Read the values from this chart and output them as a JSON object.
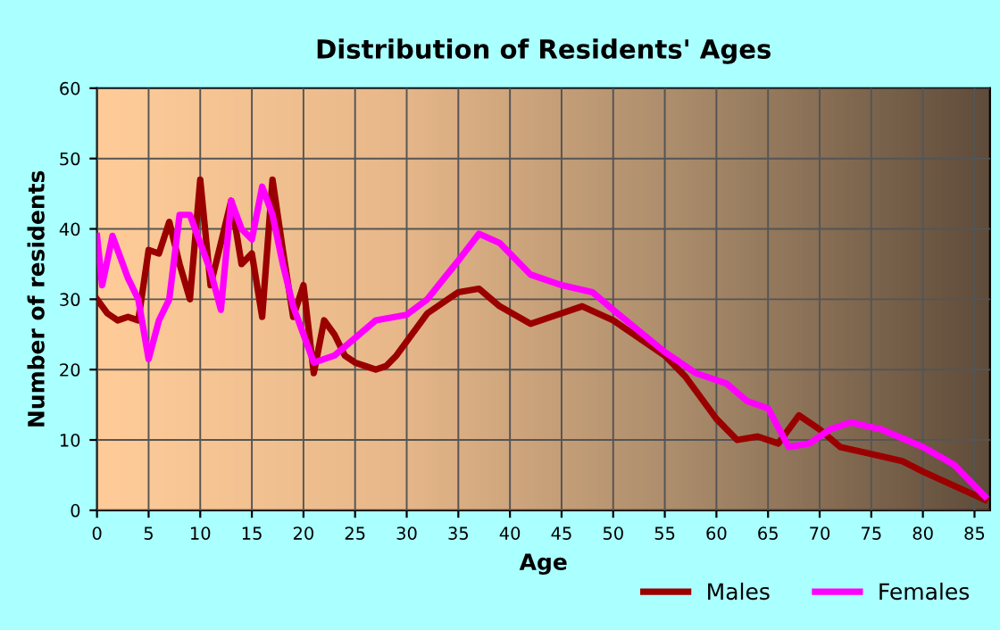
{
  "chart_data": {
    "type": "line",
    "title": "Distribution of Residents' Ages",
    "xlabel": "Age",
    "ylabel": "Number of residents",
    "xlim": [
      0,
      86.5
    ],
    "xticks": [
      0,
      5,
      10,
      15,
      20,
      25,
      30,
      35,
      40,
      45,
      50,
      55,
      60,
      65,
      70,
      75,
      80,
      85
    ],
    "ylim": [
      0,
      60
    ],
    "yticks": [
      0,
      10,
      20,
      30,
      40,
      50,
      60
    ],
    "grid": true,
    "legend": "bottom right",
    "series": [
      {
        "name": "Males",
        "color": "#9b0000",
        "x": [
          0,
          1,
          2,
          3,
          4,
          5,
          6,
          7,
          8,
          9,
          10,
          11,
          12,
          13,
          14,
          15,
          16,
          17,
          18,
          19,
          20,
          21,
          22,
          23,
          24,
          25,
          26,
          27,
          28,
          29,
          30,
          32,
          35,
          37,
          39,
          42,
          45,
          47,
          50,
          55,
          57,
          60,
          62,
          64,
          66,
          68,
          70,
          72,
          75,
          78,
          80,
          83,
          86
        ],
        "values": [
          30,
          28,
          27,
          27.5,
          27,
          37,
          36.5,
          41,
          35,
          30,
          47,
          32,
          38,
          44,
          35,
          36.5,
          27.5,
          47,
          37,
          27.5,
          32,
          19.5,
          27,
          25,
          22,
          21,
          20.5,
          20,
          20.5,
          22,
          24,
          28,
          31,
          31.5,
          29,
          26.5,
          28,
          29,
          27,
          22,
          19,
          13,
          10,
          10.5,
          9.5,
          13.5,
          11.5,
          9,
          8,
          7,
          5.5,
          3.5,
          1.5
        ]
      },
      {
        "name": "Females",
        "color": "#ff00ff",
        "x": [
          0,
          0.5,
          1.5,
          3,
          4,
          5,
          6,
          7,
          8,
          9,
          10,
          11,
          12,
          13,
          14,
          15,
          16,
          17,
          18,
          19,
          20,
          21,
          23,
          25,
          27,
          30,
          32,
          35,
          37,
          39,
          42,
          45,
          48,
          50,
          55,
          58,
          61,
          63,
          65,
          67,
          69,
          71,
          73,
          76,
          80,
          83,
          86
        ],
        "values": [
          39,
          32,
          39,
          33,
          30,
          21.5,
          27,
          30,
          42,
          42,
          38,
          34,
          28.5,
          44,
          40,
          38.5,
          46,
          42,
          35,
          29,
          25,
          21,
          22,
          24.5,
          27,
          27.8,
          30,
          35.5,
          39.3,
          38,
          33.5,
          32,
          31,
          28.5,
          22.5,
          19.5,
          18,
          15.5,
          14.5,
          9,
          9.5,
          11.5,
          12.5,
          11.5,
          9,
          6.5,
          2
        ]
      }
    ]
  }
}
